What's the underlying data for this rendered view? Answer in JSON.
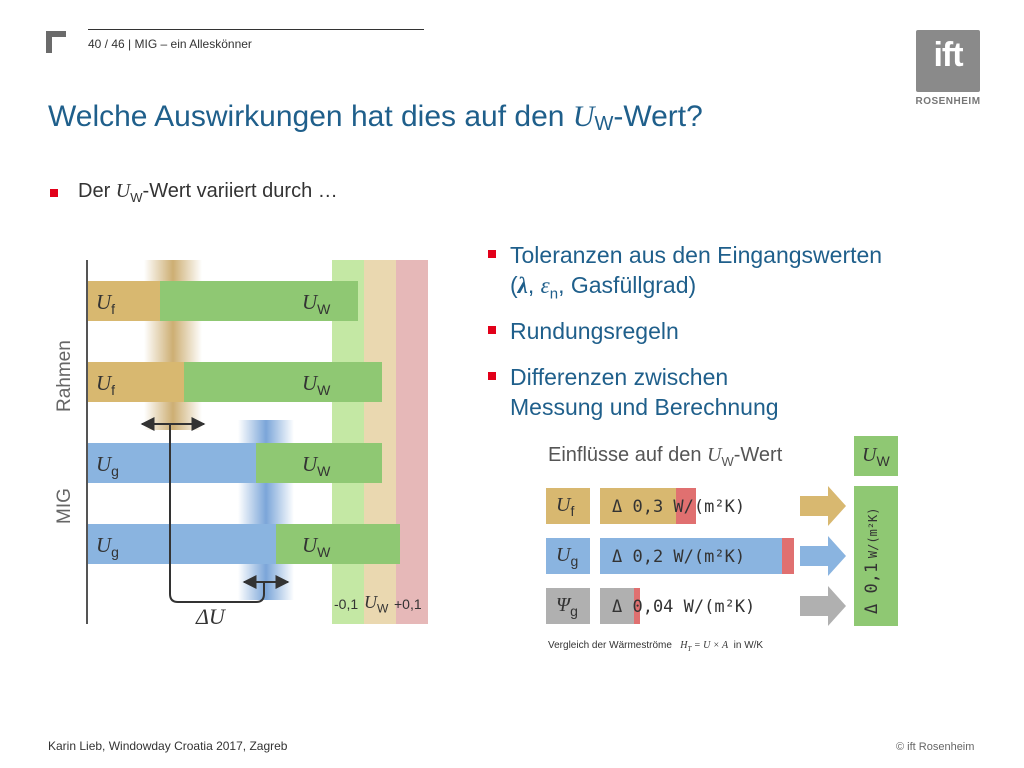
{
  "header": {
    "page": "40 / 46",
    "separator": "|",
    "section": "MIG – ein Alleskönner",
    "logo_text": "ift",
    "logo_sub": "ROSENHEIM"
  },
  "title": {
    "prefix": "Welche Auswirkungen hat dies auf den ",
    "symbol": "U",
    "sub": "W",
    "suffix": "-Wert?"
  },
  "bullet1": {
    "prefix": "Der ",
    "symbol": "U",
    "sub": "W",
    "suffix": "-Wert variiert durch …"
  },
  "right_bullets": {
    "b1_line1": "Toleranzen aus den Eingangswerten",
    "b1_line2_a": "(",
    "b1_lambda": "λ",
    "b1_sep": ", ",
    "b1_eps": "ε",
    "b1_eps_sub": "n",
    "b1_line2_b": ", Gasfüllgrad)",
    "b2": "Rundungsregeln",
    "b3_line1": "Differenzen zwischen",
    "b3_line2": "Messung und Berechnung"
  },
  "diagram": {
    "label_rahmen": "Rahmen",
    "label_mig": "MIG",
    "rows": [
      {
        "left_sym": "U",
        "left_sub": "f",
        "right_sym": "U",
        "right_sub": "W"
      },
      {
        "left_sym": "U",
        "left_sub": "f",
        "right_sym": "U",
        "right_sub": "W"
      },
      {
        "left_sym": "U",
        "left_sub": "g",
        "right_sym": "U",
        "right_sub": "W"
      },
      {
        "left_sym": "U",
        "left_sub": "g",
        "right_sym": "U",
        "right_sub": "W"
      }
    ],
    "delta_u": "ΔU",
    "tick_minus": "-0,1",
    "tick_mid_sym": "U",
    "tick_mid_sub": "W",
    "tick_plus": "+0,1"
  },
  "influences": {
    "title_prefix": "Einflüsse auf den ",
    "title_sym": "U",
    "title_sub": "W",
    "title_suffix": "-Wert",
    "head_sym": "U",
    "head_sub": "W",
    "items": [
      {
        "sym": "U",
        "sub": "f",
        "value": "Δ 0,3 W/(m²K)"
      },
      {
        "sym": "U",
        "sub": "g",
        "value": "Δ 0,2 W/(m²K)"
      },
      {
        "sym": "Ψ",
        "sub": "g",
        "value": "Δ 0,04 W/(m²K)"
      }
    ],
    "total_value": "Δ 0,1",
    "total_unit": "W/(m²K)",
    "footnote_prefix": "Vergleich der Wärmeströme",
    "footnote_formula": "H",
    "footnote_formula_sub": "T",
    "footnote_formula_rest": " = U × A",
    "footnote_suffix": "in W/K"
  },
  "footer": {
    "left": "Karin Lieb, Windowday Croatia 2017, Zagreb",
    "right": "© ift Rosenheim"
  },
  "colors": {
    "title_blue": "#1f5f8b",
    "bullet_red": "#e2001a",
    "frame_tan": "#d8b870",
    "glass_blue": "#8ab4e0",
    "uw_green": "#8fc873",
    "band_green": "#c4e8a4",
    "band_beige": "#ead8b0",
    "band_pink": "#e6b8b8",
    "tol_red": "#e07070",
    "gray": "#b0b0b0"
  }
}
